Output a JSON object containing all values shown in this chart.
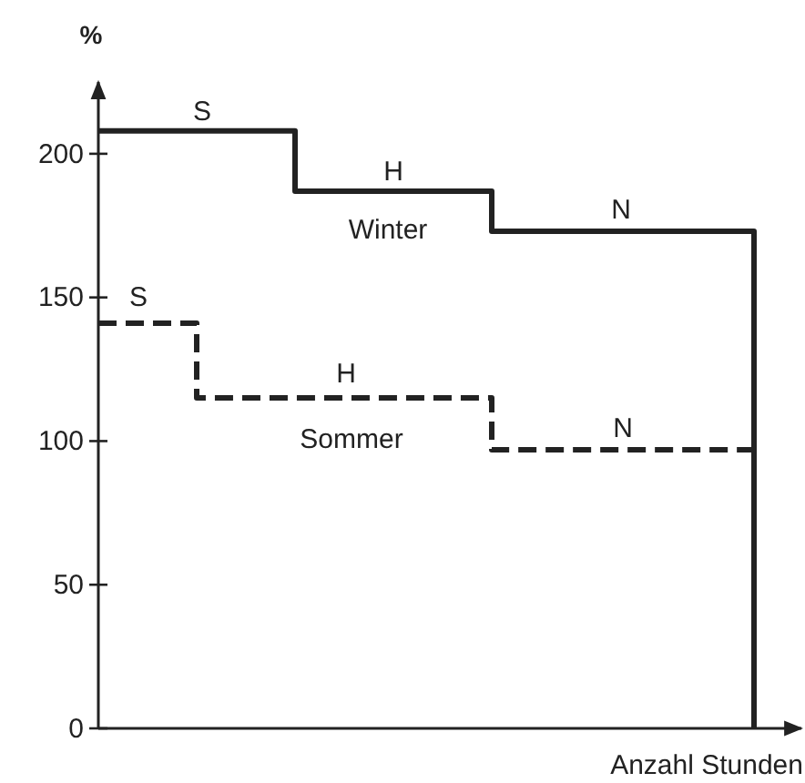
{
  "chart_data": {
    "type": "step",
    "xlabel": "Anzahl Stunden",
    "ylabel": "%",
    "categories": [
      null,
      null,
      null,
      null,
      null,
      null,
      null,
      null,
      null,
      null,
      null,
      null,
      null,
      null,
      null,
      null,
      null,
      null,
      null,
      null,
      null
    ],
    "series": [
      {
        "name": "Winter",
        "color": "#222222",
        "line_style": "solid",
        "values": [
          208,
          208,
          208,
          208,
          208,
          208,
          187,
          187,
          187,
          187,
          187,
          187,
          173,
          173,
          173,
          173,
          173,
          173,
          173,
          173,
          0
        ]
      },
      {
        "name": "Sommer",
        "color": "#222222",
        "line_style": "dashed",
        "values": [
          141,
          141,
          141,
          115,
          115,
          115,
          115,
          115,
          115,
          115,
          115,
          115,
          97,
          97,
          97,
          97,
          97,
          97,
          97,
          97,
          97
        ]
      }
    ],
    "annotations": [
      "S",
      "H",
      "N",
      "S",
      "H",
      "N"
    ],
    "ylim": [
      0,
      225
    ],
    "yticks": [
      0,
      50,
      100,
      150,
      200
    ],
    "tick_labels": "y",
    "grid": false,
    "legend": false
  }
}
